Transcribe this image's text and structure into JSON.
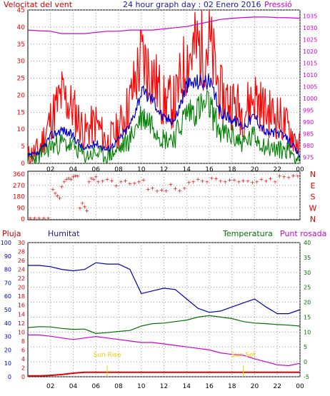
{
  "header": {
    "wind_label": "Velocitat del vent",
    "title": "24 hour graph day : 02 Enero 2016",
    "pressure_label": "Pressió"
  },
  "colors": {
    "wind_gust": "#ff0000",
    "wind_avg": "#0000cc",
    "wind_min": "#008000",
    "pressure": "#cc00cc",
    "direction": "#e00000",
    "rain": "#e00000",
    "humidity": "#0000aa",
    "temperature": "#007000",
    "dewpoint": "#cc00cc",
    "sun": "#e6d000",
    "grid": "#9a9a9a"
  },
  "legend_bottom": {
    "rain": "Pluja",
    "humidity": "Humitat",
    "temperature": "Temperatura",
    "dewpoint": "Punt rosada"
  },
  "annotations": {
    "sunrise": "Sun Rise",
    "sunset": "Sun Set",
    "sunrise_hour": 7.0,
    "sunset_hour": 19.0
  },
  "chart_data": [
    {
      "type": "line",
      "name": "wind-pressure",
      "x_ticks": [
        "02",
        "04",
        "06",
        "08",
        "10",
        "12",
        "14",
        "16",
        "18",
        "20",
        "22",
        "00"
      ],
      "x_tick_hours": [
        2,
        4,
        6,
        8,
        10,
        12,
        14,
        16,
        18,
        20,
        22,
        24
      ],
      "x_range": [
        0,
        24
      ],
      "y_left_range": [
        0,
        45
      ],
      "y_left_ticks": [
        0,
        5,
        10,
        15,
        20,
        25,
        30,
        35,
        40,
        45
      ],
      "y_right_range": [
        972.5,
        1037.5
      ],
      "y_right_ticks": [
        975,
        980,
        985,
        990,
        995,
        1000,
        1005,
        1010,
        1015,
        1020,
        1025,
        1030,
        1035
      ],
      "hours": [
        0,
        1,
        2,
        3,
        4,
        5,
        6,
        7,
        8,
        9,
        10,
        11,
        12,
        13,
        14,
        15,
        16,
        17,
        18,
        19,
        20,
        21,
        22,
        23,
        24
      ],
      "gust": [
        2,
        4,
        13,
        20,
        16,
        9,
        12,
        6,
        10,
        18,
        31,
        26,
        18,
        18,
        31,
        34,
        35,
        20,
        18,
        15,
        20,
        15,
        14,
        10,
        5
      ],
      "avg": [
        2,
        3,
        8,
        10,
        8,
        4,
        6,
        4,
        7,
        11,
        21,
        19,
        13,
        13,
        23,
        24,
        24,
        15,
        13,
        11,
        14,
        9,
        9,
        7,
        2
      ],
      "min": [
        1,
        2,
        5,
        6,
        5,
        2,
        3,
        2,
        4,
        7,
        14,
        12,
        7,
        8,
        15,
        16,
        17,
        9,
        8,
        6,
        8,
        5,
        4,
        4,
        1
      ],
      "pressure": [
        1029,
        1028.7,
        1028.5,
        1027.5,
        1027.5,
        1027.5,
        1028,
        1028.5,
        1028.5,
        1029,
        1029,
        1029,
        1029.5,
        1030,
        1030.5,
        1031.5,
        1032.5,
        1033.5,
        1034,
        1034.3,
        1034.5,
        1034.5,
        1034.3,
        1034.2,
        1034
      ]
    },
    {
      "type": "scatter",
      "name": "wind-direction",
      "x_range": [
        0,
        24
      ],
      "y_range": [
        0,
        360
      ],
      "y_ticks": [
        0,
        90,
        180,
        270,
        360
      ],
      "compass_labels": [
        "N",
        "W",
        "S",
        "E",
        "N"
      ],
      "hours": [
        0.2,
        0.6,
        1.0,
        1.4,
        1.8,
        2.2,
        2.4,
        2.6,
        2.8,
        3.0,
        3.2,
        3.4,
        3.6,
        3.8,
        4.0,
        4.2,
        4.4,
        4.6,
        4.8,
        5.0,
        5.2,
        5.4,
        5.6,
        5.8,
        6.0,
        6.2,
        6.6,
        7.0,
        7.4,
        7.8,
        8.2,
        8.6,
        9.0,
        9.4,
        9.8,
        10.2,
        10.6,
        11.0,
        11.4,
        11.8,
        12.2,
        12.6,
        13.0,
        13.4,
        13.8,
        14.2,
        14.6,
        15.0,
        15.4,
        15.8,
        16.2,
        16.6,
        17.0,
        17.4,
        17.8,
        18.2,
        18.6,
        19.0,
        19.4,
        19.8,
        20.2,
        20.6,
        21.0,
        21.4,
        21.8,
        22.2,
        22.6,
        23.0,
        23.4,
        23.8
      ],
      "values": [
        10,
        10,
        10,
        10,
        10,
        240,
        210,
        190,
        170,
        260,
        300,
        320,
        330,
        320,
        340,
        350,
        345,
        90,
        130,
        100,
        70,
        300,
        330,
        320,
        340,
        300,
        305,
        320,
        310,
        270,
        300,
        310,
        285,
        290,
        300,
        315,
        240,
        250,
        225,
        235,
        230,
        280,
        245,
        230,
        250,
        295,
        300,
        320,
        305,
        300,
        330,
        325,
        305,
        300,
        315,
        315,
        300,
        310,
        305,
        295,
        300,
        320,
        305,
        325,
        300,
        345,
        340,
        335,
        350,
        345
      ]
    },
    {
      "type": "line",
      "name": "humidity-temperature",
      "x_range": [
        0,
        24
      ],
      "humidity_range": [
        0,
        100
      ],
      "humidity_ticks": [
        0,
        10,
        20,
        30,
        40,
        50,
        60,
        70,
        80,
        90,
        100
      ],
      "rain_range": [
        0,
        30
      ],
      "rain_ticks": [
        0,
        2,
        4,
        6,
        8,
        10,
        12,
        14,
        16,
        18,
        20,
        22,
        24,
        26,
        28,
        30
      ],
      "temp_range": [
        -5,
        40
      ],
      "temp_ticks": [
        -5,
        0,
        5,
        10,
        15,
        20,
        25,
        30,
        35,
        40
      ],
      "hours": [
        0,
        1,
        2,
        3,
        4,
        5,
        6,
        7,
        8,
        9,
        10,
        11,
        12,
        13,
        14,
        15,
        16,
        17,
        18,
        19,
        20,
        21,
        22,
        23,
        24
      ],
      "humidity": [
        83,
        83,
        82,
        80,
        79,
        80,
        85,
        84,
        84,
        80,
        62,
        64,
        66,
        65,
        58,
        51,
        48,
        49,
        52,
        55,
        58,
        52,
        47,
        47,
        50
      ],
      "temperature": [
        11.5,
        11.8,
        11.7,
        11.2,
        10.9,
        11.0,
        9.5,
        9.8,
        10.2,
        10.5,
        12.0,
        12.8,
        13.0,
        13.5,
        14.0,
        15.0,
        15.5,
        15.0,
        14.5,
        13.5,
        13.0,
        12.8,
        12.5,
        12.3,
        12.0
      ],
      "dewpoint": [
        9.0,
        9.0,
        8.6,
        8.0,
        7.5,
        8.0,
        8.5,
        8.0,
        7.5,
        7.0,
        6.5,
        6.5,
        6.0,
        5.5,
        5.0,
        4.5,
        4.0,
        3.0,
        2.5,
        2.2,
        1.0,
        0.0,
        -1.0,
        -1.3,
        -0.5
      ],
      "rain": [
        0.2,
        0.2,
        0.3,
        0.5,
        0.8,
        1.0,
        1.0,
        1.0,
        1.0,
        1.0,
        1.0,
        1.0,
        1.0,
        1.0,
        1.0,
        1.0,
        1.0,
        1.0,
        1.0,
        1.0,
        1.0,
        1.0,
        1.0,
        1.0,
        1.0
      ]
    }
  ]
}
